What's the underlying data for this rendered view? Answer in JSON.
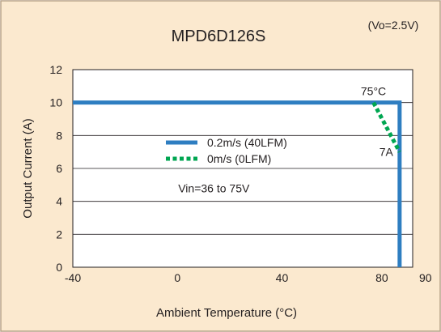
{
  "chart_data": {
    "type": "line",
    "title": "MPD6D126S",
    "condition_note": "(Vo=2.5V)",
    "xlabel": "Ambient Temperature (°C)",
    "ylabel": "Output Current (A)",
    "xlim": [
      -40,
      90
    ],
    "ylim": [
      0,
      12
    ],
    "x_ticks": [
      -40,
      0,
      40,
      80,
      90
    ],
    "y_ticks": [
      0,
      2,
      4,
      6,
      8,
      10,
      12
    ],
    "grid": "horizontal",
    "legend_position": "center",
    "series": [
      {
        "name": "0.2m/s (40LFM)",
        "color": "#2e7ec1",
        "style": "solid",
        "x": [
          -40,
          85,
          85
        ],
        "y": [
          10,
          10,
          0
        ]
      },
      {
        "name": "0m/s (0LFM)",
        "color": "#00a651",
        "style": "dotted",
        "x": [
          75,
          85
        ],
        "y": [
          10,
          7
        ]
      }
    ],
    "annotations": [
      {
        "text": "75°C",
        "x": 75,
        "y": 10
      },
      {
        "text": "7A",
        "x": 85,
        "y": 7
      },
      {
        "text": "Vin=36 to 75V",
        "x": 0,
        "y": 4.8
      }
    ]
  },
  "colors": {
    "panel_background": "#fbe9cf",
    "panel_border": "#b7a287",
    "plot_background": "#ffffff"
  }
}
